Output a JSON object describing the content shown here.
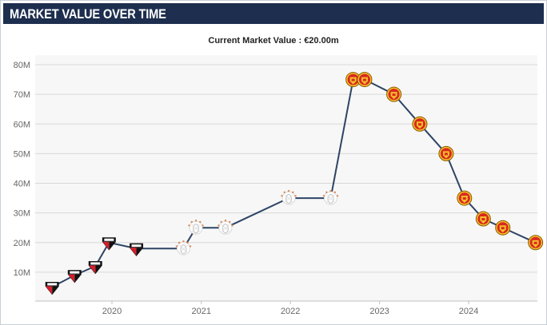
{
  "header": {
    "title": "MARKET VALUE OVER TIME"
  },
  "subtitle": "Current Market Value : €20.00m",
  "colors": {
    "header_bg": "#1d2e4e",
    "line": "#2e4466",
    "grid": "#d8d8d8",
    "plot_bg": "#f7f7f7"
  },
  "chart_data": {
    "type": "line",
    "title": "Current Market Value : €20.00m",
    "xlabel": "",
    "ylabel": "",
    "y_unit": "M",
    "ylim": [
      0,
      80
    ],
    "y_ticks": [
      "10M",
      "20M",
      "30M",
      "40M",
      "50M",
      "60M",
      "70M",
      "80M"
    ],
    "x_ticks": [
      "2020",
      "2021",
      "2022",
      "2023",
      "2024"
    ],
    "grid": true,
    "legend": "none",
    "series": [
      {
        "points": [
          {
            "date": "2019-05-01",
            "value": 5,
            "club_icon": "sao-paulo-badge"
          },
          {
            "date": "2019-08-01",
            "value": 9,
            "club_icon": "sao-paulo-badge"
          },
          {
            "date": "2019-10-25",
            "value": 12,
            "club_icon": "sao-paulo-badge"
          },
          {
            "date": "2019-12-20",
            "value": 20,
            "club_icon": "sao-paulo-badge"
          },
          {
            "date": "2020-04-10",
            "value": 18,
            "club_icon": "sao-paulo-badge"
          },
          {
            "date": "2020-10-20",
            "value": 18,
            "club_icon": "ajax-badge"
          },
          {
            "date": "2020-12-10",
            "value": 25,
            "club_icon": "ajax-badge"
          },
          {
            "date": "2021-04-10",
            "value": 25,
            "club_icon": "ajax-badge"
          },
          {
            "date": "2021-12-25",
            "value": 35,
            "club_icon": "ajax-badge"
          },
          {
            "date": "2022-06-15",
            "value": 35,
            "club_icon": "ajax-badge"
          },
          {
            "date": "2022-09-15",
            "value": 75,
            "club_icon": "man-utd-badge"
          },
          {
            "date": "2022-11-01",
            "value": 75,
            "club_icon": "man-utd-badge"
          },
          {
            "date": "2023-03-01",
            "value": 70,
            "club_icon": "man-utd-badge"
          },
          {
            "date": "2023-06-15",
            "value": 60,
            "club_icon": "man-utd-badge"
          },
          {
            "date": "2023-10-01",
            "value": 50,
            "club_icon": "man-utd-badge"
          },
          {
            "date": "2023-12-15",
            "value": 35,
            "club_icon": "man-utd-badge"
          },
          {
            "date": "2024-03-01",
            "value": 28,
            "club_icon": "man-utd-badge"
          },
          {
            "date": "2024-05-20",
            "value": 25,
            "club_icon": "man-utd-badge"
          },
          {
            "date": "2024-10-01",
            "value": 20,
            "club_icon": "man-utd-badge"
          }
        ]
      }
    ]
  }
}
